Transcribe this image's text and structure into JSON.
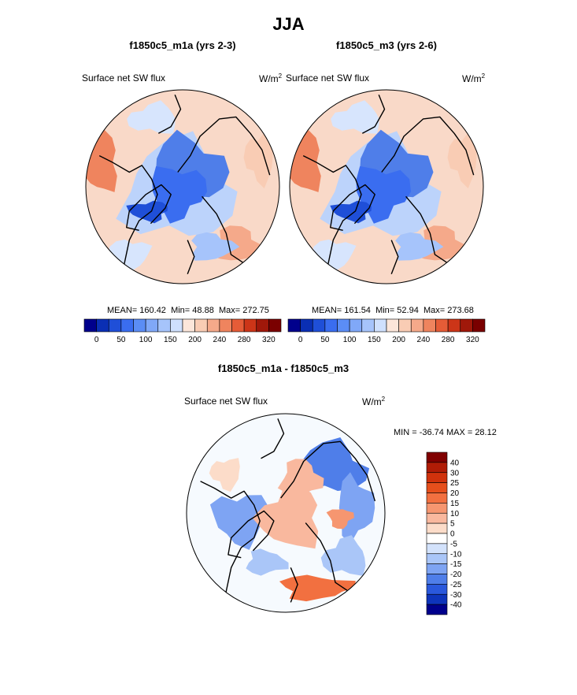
{
  "figure": {
    "season": "JJA"
  },
  "panels": [
    {
      "title": "f1850c5_m1a (yrs 2-3)",
      "variable": "Surface net SW flux",
      "units": "W/m",
      "units_exp": "2",
      "stats": {
        "mean_label": "MEAN=",
        "mean": "160.42",
        "min_label": "Min=",
        "min": "48.88",
        "max_label": "Max=",
        "max": "272.75"
      }
    },
    {
      "title": "f1850c5_m3 (yrs 2-6)",
      "variable": "Surface net SW flux",
      "units": "W/m",
      "units_exp": "2",
      "stats": {
        "mean_label": "MEAN=",
        "mean": "161.54",
        "min_label": "Min=",
        "min": "52.94",
        "max_label": "Max=",
        "max": "273.68"
      }
    }
  ],
  "diff_panel": {
    "title": "f1850c5_m1a - f1850c5_m3",
    "variable": "Surface net SW flux",
    "units": "W/m",
    "units_exp": "2",
    "minmax": "MIN = -36.74 MAX =  28.12"
  },
  "chart_data": [
    {
      "type": "heatmap",
      "title": "f1850c5_m1a (yrs 2-3)",
      "projection": "north polar stereographic",
      "field": "Surface net SW flux (W/m2)",
      "mean": 160.42,
      "min": 48.88,
      "max": 272.75,
      "colorbar": {
        "levels": [
          0,
          25,
          50,
          75,
          100,
          125,
          150,
          175,
          200,
          220,
          240,
          260,
          280,
          300,
          320
        ],
        "tick_labels": [
          "0",
          "50",
          "100",
          "150",
          "200",
          "240",
          "280",
          "320"
        ],
        "colors": [
          "#00008c",
          "#0a2fb4",
          "#1f4fd8",
          "#3a6df0",
          "#5b8df5",
          "#80a8f8",
          "#a6c4fb",
          "#cfe0fd",
          "#fce6da",
          "#f9ccb4",
          "#f5a98a",
          "#ef845e",
          "#e55c37",
          "#cc3518",
          "#a0180a",
          "#7a0000"
        ]
      }
    },
    {
      "type": "heatmap",
      "title": "f1850c5_m3 (yrs 2-6)",
      "projection": "north polar stereographic",
      "field": "Surface net SW flux (W/m2)",
      "mean": 161.54,
      "min": 52.94,
      "max": 273.68,
      "colorbar": {
        "levels": [
          0,
          25,
          50,
          75,
          100,
          125,
          150,
          175,
          200,
          220,
          240,
          260,
          280,
          300,
          320
        ],
        "tick_labels": [
          "0",
          "50",
          "100",
          "150",
          "200",
          "240",
          "280",
          "320"
        ],
        "colors": [
          "#00008c",
          "#0a2fb4",
          "#1f4fd8",
          "#3a6df0",
          "#5b8df5",
          "#80a8f8",
          "#a6c4fb",
          "#cfe0fd",
          "#fce6da",
          "#f9ccb4",
          "#f5a98a",
          "#ef845e",
          "#e55c37",
          "#cc3518",
          "#a0180a",
          "#7a0000"
        ]
      }
    },
    {
      "type": "heatmap",
      "title": "f1850c5_m1a - f1850c5_m3",
      "projection": "north polar stereographic",
      "field": "Surface net SW flux difference (W/m2)",
      "min": -36.74,
      "max": 28.12,
      "colorbar": {
        "tick_labels": [
          "40",
          "30",
          "25",
          "20",
          "15",
          "10",
          "5",
          "0",
          "-5",
          "-10",
          "-15",
          "-20",
          "-25",
          "-30",
          "-40"
        ],
        "colors": [
          "#800000",
          "#b01c06",
          "#d0320c",
          "#e64f1c",
          "#f27040",
          "#f69670",
          "#f9b89e",
          "#fcdcc9",
          "#ffffff",
          "#d3e2fb",
          "#aac6f8",
          "#7ea4f3",
          "#4f7ee9",
          "#2a58dc",
          "#0e34bb",
          "#00008c"
        ]
      }
    }
  ]
}
